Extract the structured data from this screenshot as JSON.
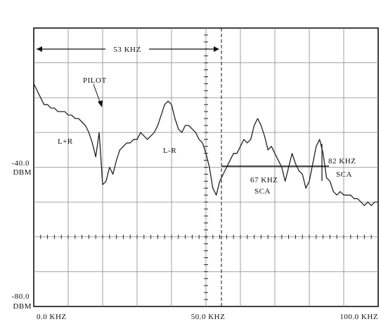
{
  "chart_data": {
    "type": "line",
    "title": "",
    "xlabel": "",
    "ylabel": "",
    "xlim": [
      0,
      100
    ],
    "ylim": [
      -80,
      0
    ],
    "x_unit": "kHz",
    "y_unit": "dBm",
    "grid": true,
    "x_tick_labels": [
      "0.0 KHZ",
      "50.0 KHZ",
      "100.0 KHZ"
    ],
    "y_tick_labels": [
      {
        "value": -40,
        "lines": [
          "-40.0",
          "DBM"
        ]
      },
      {
        "value": -80,
        "lines": [
          "-80.0",
          "DBM"
        ]
      }
    ],
    "series": [
      {
        "x": [
          0,
          1,
          2,
          3,
          4,
          5,
          6,
          7,
          8,
          9,
          10,
          11,
          12,
          13,
          14,
          15,
          16,
          17,
          18,
          19,
          20,
          21,
          22,
          23,
          24,
          25,
          26,
          27,
          28,
          29,
          30,
          31,
          32,
          33,
          34,
          35,
          36,
          37,
          38,
          39,
          40,
          41,
          42,
          43,
          44,
          45,
          46,
          47,
          48,
          49,
          50,
          51,
          52,
          53,
          54,
          55,
          56,
          57,
          58,
          59,
          60,
          61,
          62,
          63,
          64,
          65,
          66,
          67,
          68,
          69,
          70,
          71,
          72,
          73,
          74,
          75,
          76,
          77,
          78,
          79,
          80,
          81,
          82,
          83,
          84,
          85,
          86,
          87,
          88,
          89,
          90,
          91,
          92,
          93,
          94,
          95,
          96,
          97,
          98,
          99,
          100
        ],
        "y": [
          -16,
          -18,
          -20,
          -22,
          -22,
          -23,
          -23,
          -24,
          -24,
          -24,
          -25,
          -25,
          -26,
          -26,
          -27,
          -28,
          -30,
          -33,
          -37,
          -30,
          -45,
          -44,
          -40,
          -42,
          -38,
          -35,
          -34,
          -33,
          -33,
          -32,
          -32,
          -30,
          -31,
          -32,
          -31,
          -30,
          -28,
          -25,
          -22,
          -21,
          -22,
          -26,
          -29,
          -30,
          -28,
          -28,
          -29,
          -30,
          -32,
          -33,
          -36,
          -40,
          -46,
          -48,
          -44,
          -42,
          -40,
          -38,
          -36,
          -36,
          -34,
          -32,
          -33,
          -32,
          -28,
          -26,
          -28,
          -31,
          -35,
          -34,
          -36,
          -38,
          -40,
          -44,
          -40,
          -36,
          -39,
          -41,
          -42,
          -46,
          -44,
          -39,
          -34,
          -32,
          -36,
          -43,
          -44,
          -47,
          -48,
          -47,
          -48,
          -48,
          -48,
          -49,
          -49,
          -50,
          -51,
          -50,
          -51,
          -50,
          -50
        ]
      }
    ],
    "annotations": {
      "span_label": "53 KHZ",
      "pilot_label": "PILOT",
      "lpr_label": "L+R",
      "lmr_label": "L-R",
      "sca67_label": [
        "67 KHZ",
        "SCA"
      ],
      "sca82_label": [
        "82 KHZ",
        "SCA"
      ]
    }
  }
}
